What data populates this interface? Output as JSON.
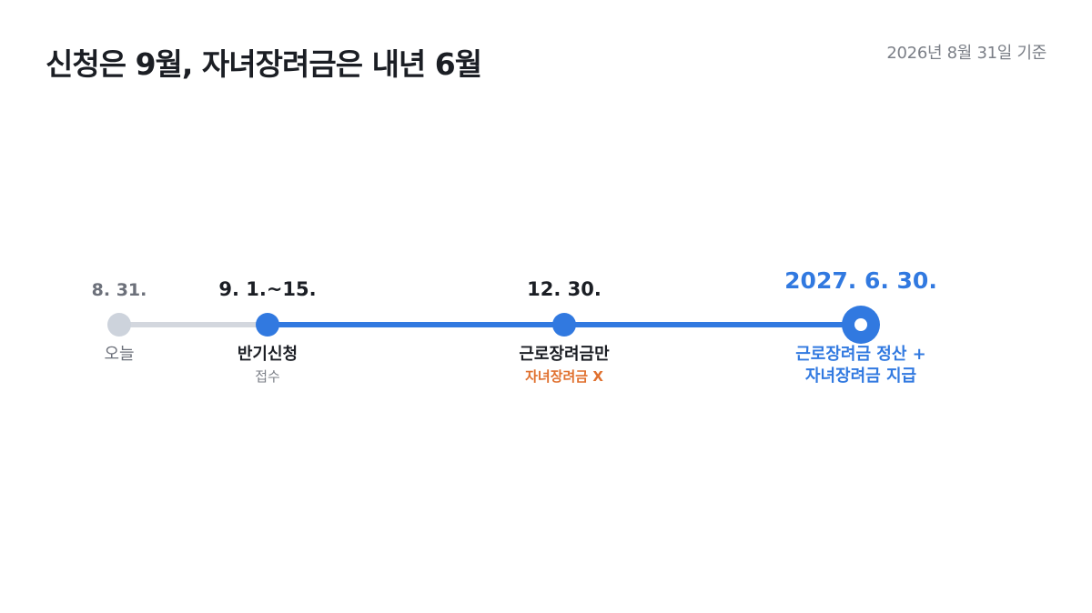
{
  "header": {
    "title": "신청은 9월, 자녀장려금은 내년 6월",
    "basis_date": "2026년 8월 31일 기준"
  },
  "timeline": {
    "colors": {
      "active": "#3179e0",
      "inactive": "#cdd3dc",
      "warning": "#e0702e"
    },
    "milestones": [
      {
        "date": "8. 31.",
        "label": "오늘",
        "sub": ""
      },
      {
        "date": "9. 1.~15.",
        "label": "반기신청",
        "sub": "접수"
      },
      {
        "date": "12. 30.",
        "label": "근로장려금만",
        "sub": "자녀장려금 X"
      },
      {
        "date": "2027. 6. 30.",
        "label_line1": "근로장려금 정산 +",
        "label_line2": "자녀장려금 지급"
      }
    ]
  }
}
